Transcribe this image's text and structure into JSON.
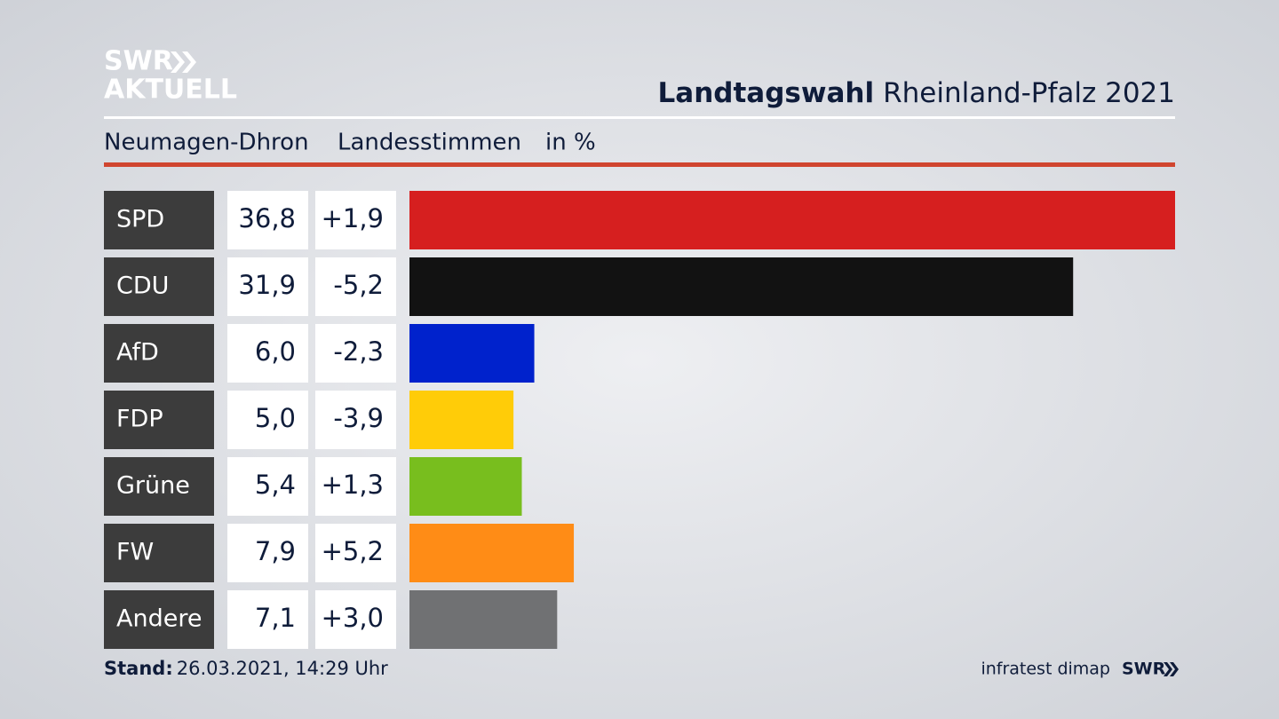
{
  "chart_data": {
    "type": "bar",
    "logo": [
      "SWR",
      "AKTUELL"
    ],
    "title": "Landtagswahl",
    "title_rest": "Rheinland-Pfalz 2021",
    "subtitle": [
      "Neumagen-Dhron",
      "Landesstimmen",
      "in %"
    ],
    "categories": [
      "SPD",
      "CDU",
      "AfD",
      "FDP",
      "Grüne",
      "FW",
      "Andere"
    ],
    "values": [
      36.8,
      31.9,
      6.0,
      5.0,
      5.4,
      7.9,
      7.1
    ],
    "value_labels": [
      "36,8",
      "31,9",
      "6,0",
      "5,0",
      "5,4",
      "7,9",
      "7,1"
    ],
    "changes": [
      "+1,9",
      "-5,2",
      "-2,3",
      "-3,9",
      "+1,3",
      "+5,2",
      "+3,0"
    ],
    "colors": [
      "#d61f1f",
      "#121212",
      "#0022cc",
      "#ffcc08",
      "#78be1e",
      "#ff8c16",
      "#707173"
    ],
    "footer": {
      "label": "Stand:",
      "date": "26.03.2021, 14:29 Uhr",
      "source": "infratest dimap",
      "brand": "SWR"
    }
  }
}
